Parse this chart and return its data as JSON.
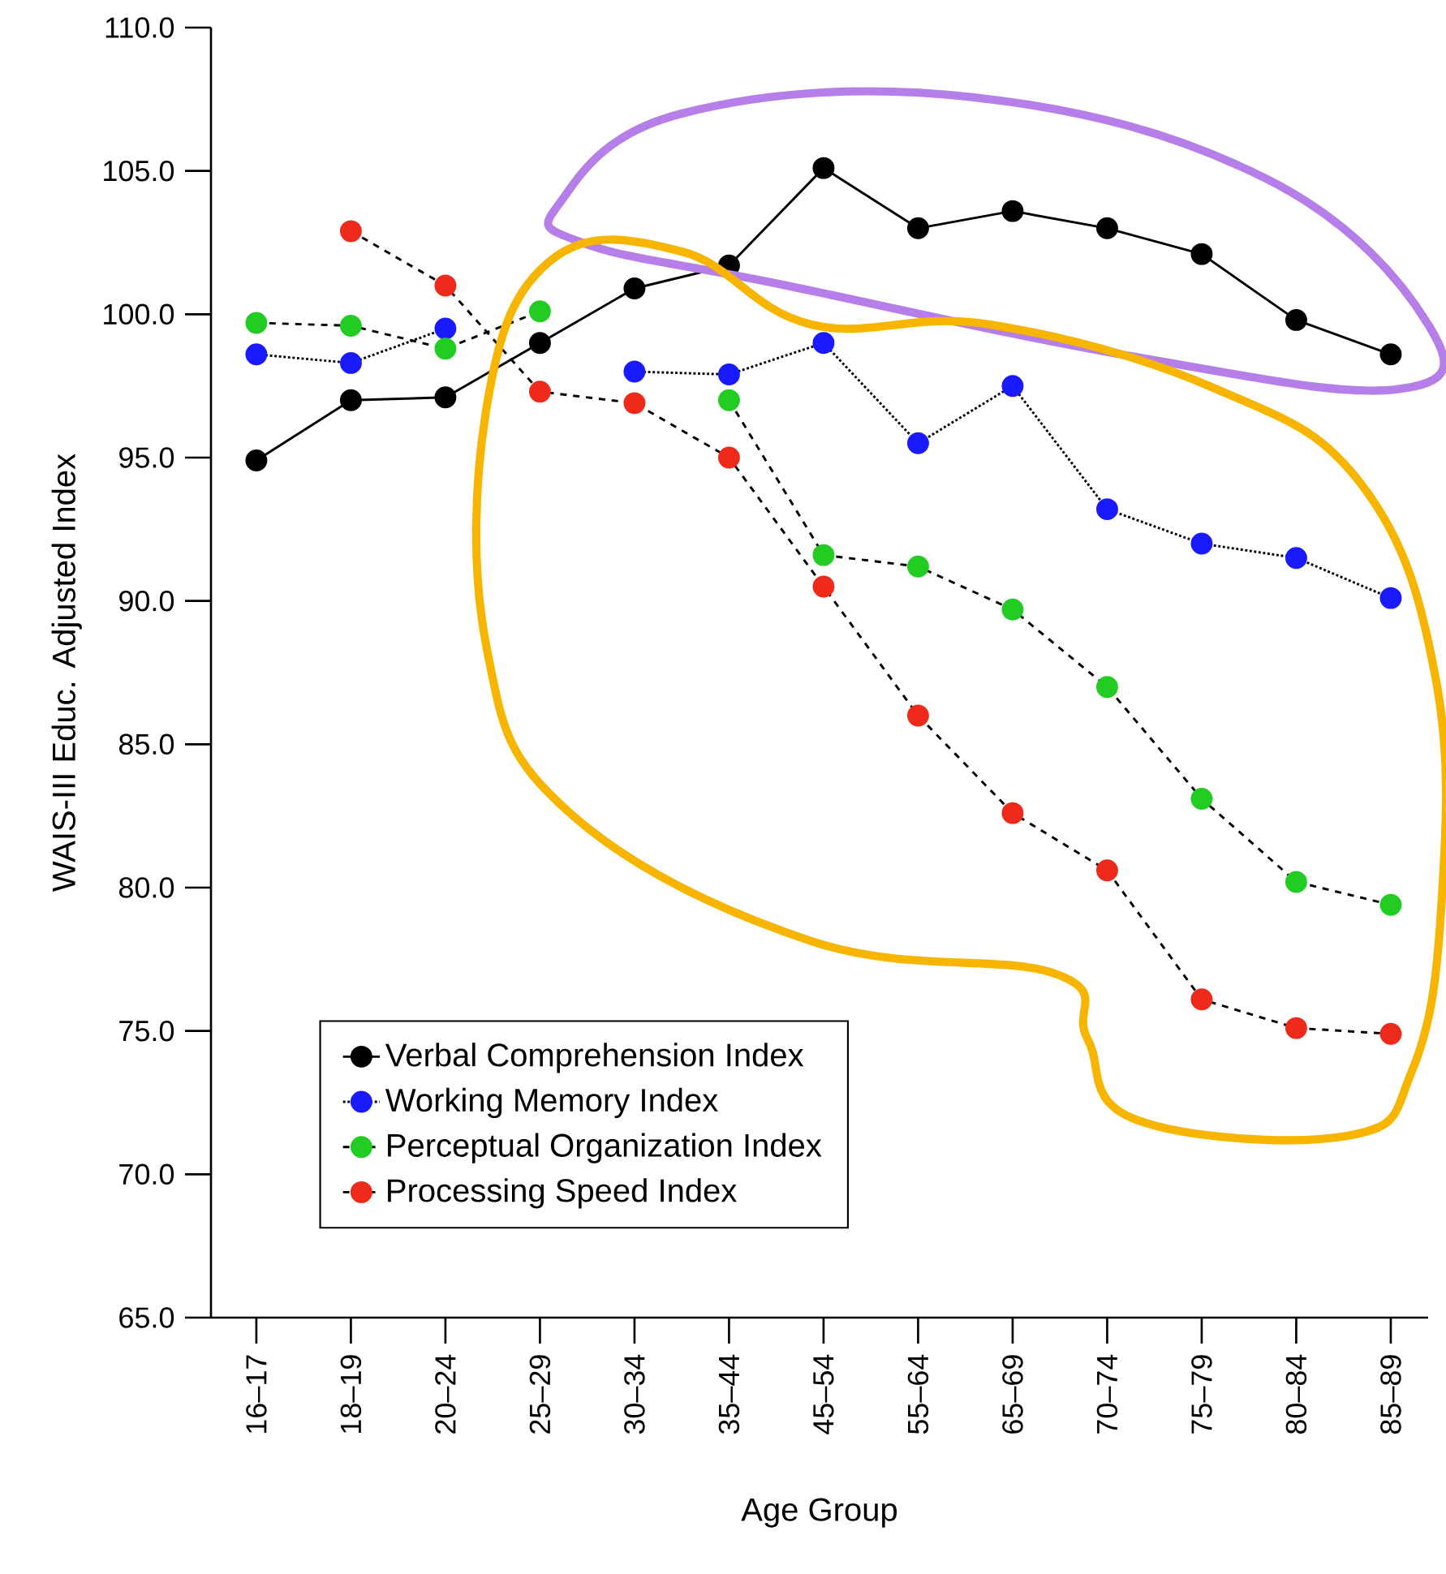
{
  "chart_data": {
    "type": "line",
    "xlabel": "Age Group",
    "ylabel": "WAIS-III Educ. Adjusted Index",
    "categories": [
      "16–17",
      "18–19",
      "20–24",
      "25–29",
      "30–34",
      "35–44",
      "45–54",
      "55–64",
      "65–69",
      "70–74",
      "75–79",
      "80–84",
      "85–89"
    ],
    "series": [
      {
        "name": "Verbal Comprehension Index",
        "color": "#000000",
        "line_style": "solid",
        "values": [
          94.9,
          97.0,
          97.1,
          99.0,
          100.9,
          101.7,
          105.1,
          103.0,
          103.6,
          103.0,
          102.1,
          99.8,
          98.6
        ]
      },
      {
        "name": "Working Memory Index",
        "color": "#1a1aff",
        "line_style": "dotted",
        "values": [
          98.6,
          98.3,
          99.5,
          null,
          98.0,
          97.9,
          99.0,
          95.5,
          97.5,
          93.2,
          92.0,
          91.5,
          90.1
        ]
      },
      {
        "name": "Perceptual Organization Index",
        "color": "#22cc22",
        "line_style": "dashed",
        "values": [
          99.7,
          99.6,
          98.8,
          100.1,
          null,
          97.0,
          91.6,
          91.2,
          89.7,
          87.0,
          83.1,
          80.2,
          79.4
        ]
      },
      {
        "name": "Processing Speed Index",
        "color": "#ee2a1a",
        "line_style": "dashed",
        "values": [
          null,
          102.9,
          101.0,
          97.3,
          96.9,
          95.0,
          90.5,
          86.0,
          82.6,
          80.6,
          76.1,
          75.1,
          74.9
        ]
      }
    ],
    "ylim": [
      65,
      110
    ],
    "yticks": [
      {
        "value": 65,
        "label": "65.0"
      },
      {
        "value": 70,
        "label": "70.0"
      },
      {
        "value": 75,
        "label": "75.0"
      },
      {
        "value": 80,
        "label": "80.0"
      },
      {
        "value": 85,
        "label": "85.0"
      },
      {
        "value": 90,
        "label": "90.0"
      },
      {
        "value": 95,
        "label": "95.0"
      },
      {
        "value": 100,
        "label": "100.0"
      },
      {
        "value": 105,
        "label": "105.0"
      },
      {
        "value": 110,
        "label": "110.0"
      }
    ],
    "grid": false,
    "legend": "bottom left",
    "marker": "circle"
  }
}
